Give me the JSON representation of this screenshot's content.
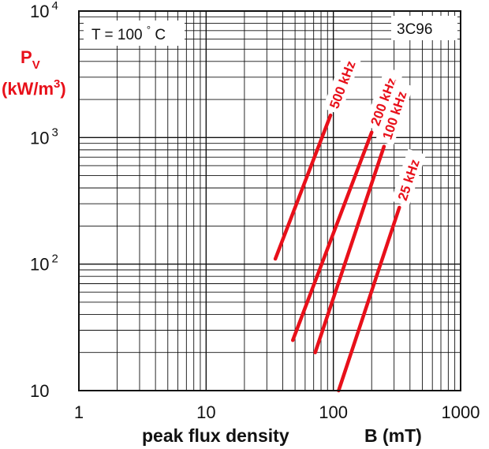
{
  "chart_data": {
    "type": "line",
    "title": "3C96",
    "annotation": {
      "text": "T = 100",
      "unit": "°C"
    },
    "xlabel_left": "peak flux density",
    "xlabel_right": "B (mT)",
    "ylabel_line1": "Pv",
    "ylabel_line2": "(kW/m3)",
    "x_scale": "log",
    "y_scale": "log",
    "xlim": [
      1,
      1000
    ],
    "ylim": [
      10,
      10000
    ],
    "x_ticks": [
      "1",
      "10",
      "100",
      "1000"
    ],
    "y_ticks": [
      {
        "base": "10",
        "exp": ""
      },
      {
        "base": "10",
        "exp": "2"
      },
      {
        "base": "10",
        "exp": "3"
      },
      {
        "base": "10",
        "exp": "4"
      }
    ],
    "grid": true,
    "line_color": "#e8101a",
    "series": [
      {
        "name": "500 kHz",
        "x": [
          35,
          95
        ],
        "y": [
          110,
          1500
        ]
      },
      {
        "name": "200 kHz",
        "x": [
          48,
          200
        ],
        "y": [
          25,
          1100
        ]
      },
      {
        "name": "100 kHz",
        "x": [
          72,
          250
        ],
        "y": [
          20,
          850
        ]
      },
      {
        "name": "25 kHz",
        "x": [
          110,
          330
        ],
        "y": [
          10,
          280
        ]
      }
    ]
  }
}
